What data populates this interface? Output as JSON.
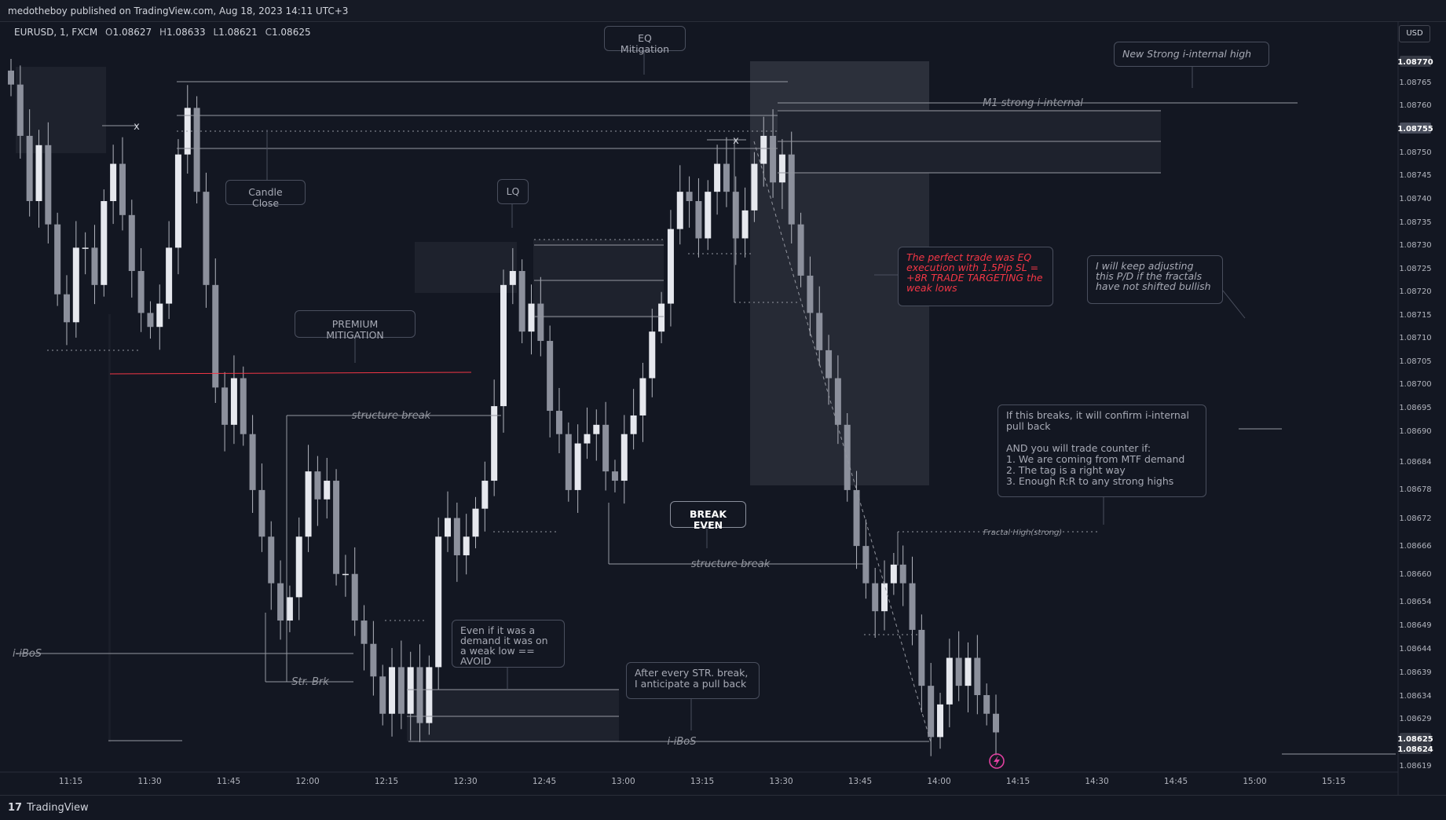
{
  "header": {
    "published": "medotheboy published on TradingView.com, Aug 18, 2023 14:11 UTC+3"
  },
  "symbol": {
    "name": "EURUSD, 1, FXCM",
    "o_label": "O",
    "o": "1.08627",
    "h_label": "H",
    "h": "1.08633",
    "l_label": "L",
    "l": "1.08621",
    "c_label": "C",
    "c": "1.08625"
  },
  "currency_button": "USD",
  "footer": {
    "brand": "TradingView",
    "logo_glyph": "17"
  },
  "colors": {
    "background": "#131722",
    "candle": "#b2b5be",
    "annotation": "#9598a1",
    "red_note": "#f23645",
    "red_line": "#f23645",
    "zone_fill": "#1e222d",
    "zone_fill_light": "#262a35"
  },
  "chart_data": {
    "type": "candlestick",
    "y_axis": {
      "ticks": [
        "1.08770",
        "1.08765",
        "1.08760",
        "1.08755",
        "1.08750",
        "1.08745",
        "1.08740",
        "1.08735",
        "1.08730",
        "1.08725",
        "1.08720",
        "1.08715",
        "1.08710",
        "1.08705",
        "1.08700",
        "1.08695",
        "1.08690",
        "1.08684",
        "1.08678",
        "1.08672",
        "1.08666",
        "1.08660",
        "1.08654",
        "1.08649",
        "1.08644",
        "1.08639",
        "1.08634",
        "1.08629",
        "1.08625",
        "1.08624",
        "1.08619"
      ],
      "highlighted": [
        "1.08770",
        "1.08755",
        "1.08625",
        "1.08624"
      ]
    },
    "x_axis": {
      "ticks": [
        "11:15",
        "11:30",
        "11:45",
        "12:00",
        "12:15",
        "12:30",
        "12:45",
        "13:00",
        "13:15",
        "13:30",
        "13:45",
        "14:00",
        "14:15",
        "14:30",
        "14:45",
        "15:00",
        "15:15"
      ]
    },
    "price_path": [
      1.08765,
      1.08754,
      1.0874,
      1.08752,
      1.08735,
      1.0872,
      1.08714,
      1.0873,
      1.0873,
      1.08722,
      1.0874,
      1.08748,
      1.08737,
      1.08725,
      1.08716,
      1.08713,
      1.08718,
      1.0873,
      1.0875,
      1.0876,
      1.08742,
      1.08722,
      1.087,
      1.08692,
      1.08702,
      1.0869,
      1.08678,
      1.08668,
      1.08658,
      1.0865,
      1.08655,
      1.08668,
      1.08682,
      1.08676,
      1.0868,
      1.0866,
      1.0866,
      1.0865,
      1.08645,
      1.08638,
      1.0863,
      1.0864,
      1.0863,
      1.0864,
      1.08628,
      1.0864,
      1.08668,
      1.08672,
      1.08664,
      1.08668,
      1.08674,
      1.0868,
      1.08696,
      1.08722,
      1.08725,
      1.08712,
      1.08718,
      1.0871,
      1.08695,
      1.0869,
      1.08678,
      1.08688,
      1.0869,
      1.08692,
      1.08682,
      1.0868,
      1.0869,
      1.08694,
      1.08702,
      1.08712,
      1.08718,
      1.08734,
      1.08742,
      1.0874,
      1.08732,
      1.08742,
      1.08748,
      1.08742,
      1.08732,
      1.08738,
      1.08748,
      1.08754,
      1.08744,
      1.0875,
      1.08735,
      1.08724,
      1.08716,
      1.08708,
      1.08702,
      1.08692,
      1.08678,
      1.08666,
      1.08658,
      1.08652,
      1.08658,
      1.08662,
      1.08658,
      1.08648,
      1.08636,
      1.08625,
      1.08632,
      1.08642,
      1.08636,
      1.08642,
      1.08634,
      1.0863,
      1.08626
    ],
    "labels": {
      "eq_mitigation": "EQ Mitigation",
      "new_strong_high": "New Strong i-internal high",
      "m1_strong": "M1 strong i-internal",
      "candle_close": "Candle Close",
      "lq": "LQ",
      "red_note": "The perfect trade was EQ execution with 1.5Pip SL = +8R TRADE TARGETING the weak lows",
      "keep_adjusting": "I will keep adjusting this P/D if the fractals have not shifted bullish",
      "premium_mitigation": "PREMIUM MITIGATION",
      "structure_break_1": "structure break",
      "structure_break_2": "structure break",
      "if_breaks": "If this breaks, it will confirm i-internal pull back\n\nAND you will trade counter if:\n1. We are coming from MTF demand\n2. The tag is a right way\n3. Enough R:R to any strong highs",
      "break_even": "BREAK EVEN",
      "fractal_high": "Fractal High(strong)",
      "i_ibos_1": "i-iBoS",
      "i_ibos_2": "i-iBoS",
      "str_brk": "Str. Brk",
      "demand_weak": "Even if it was a demand it was on a weak low == AVOID",
      "anticipate": "After every STR. break, I anticipate a pull back",
      "x_marker": "x"
    }
  }
}
